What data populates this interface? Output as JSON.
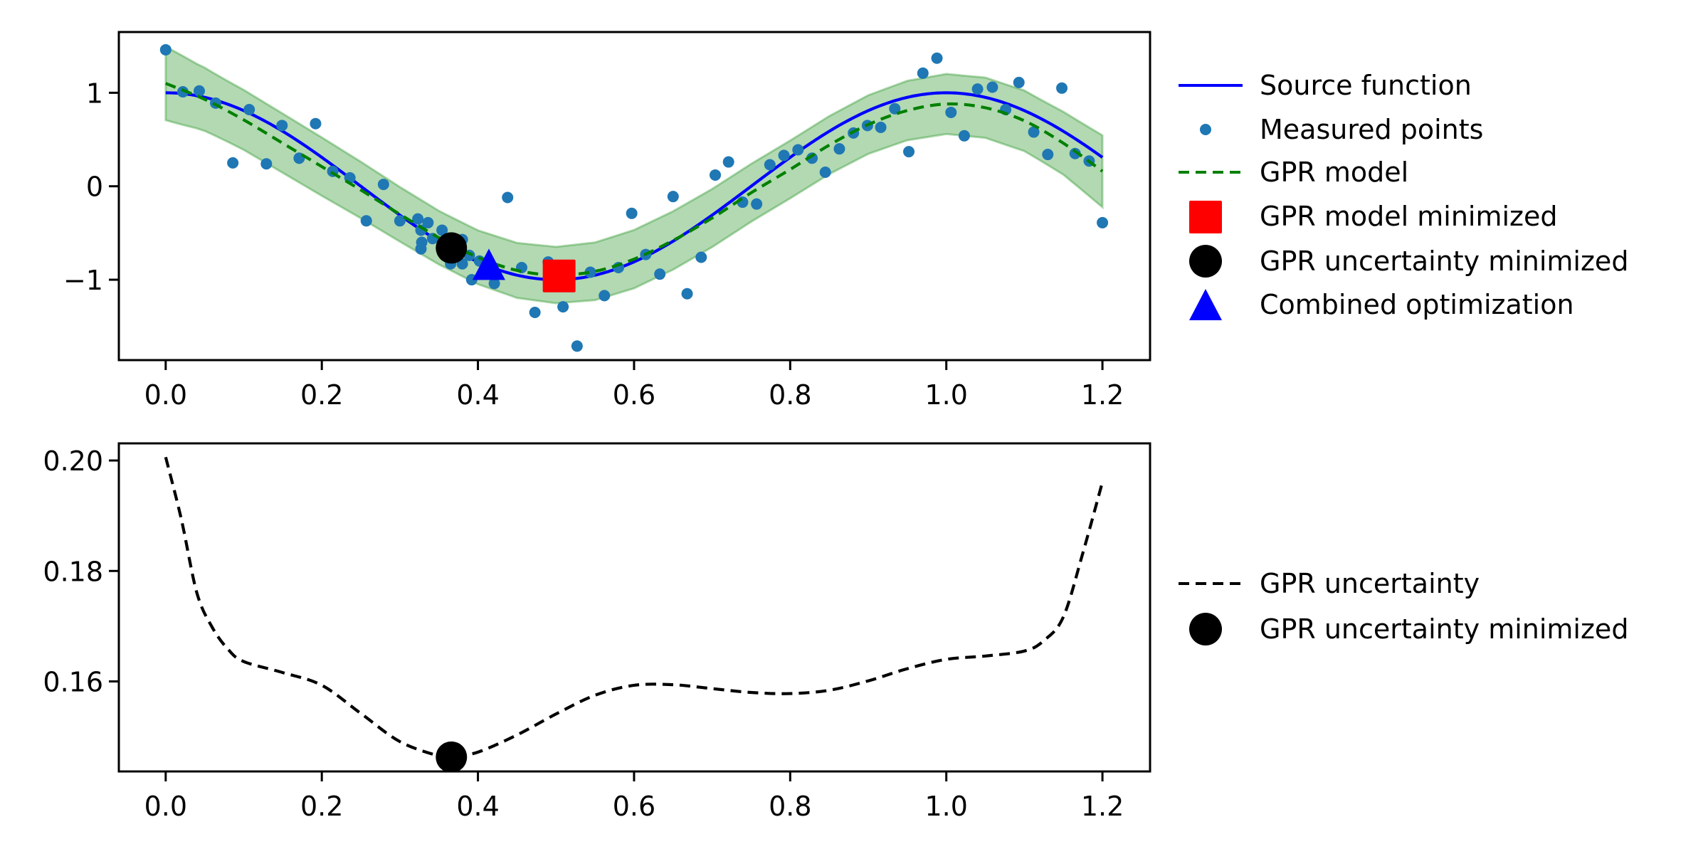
{
  "chart_data": [
    {
      "type": "line",
      "title": "",
      "xlabel": "",
      "ylabel": "",
      "xlim": [
        -0.06,
        1.261
      ],
      "ylim": [
        -1.86,
        1.65
      ],
      "grid": false,
      "x_ticks": [
        0.0,
        0.2,
        0.4,
        0.6,
        0.8,
        1.0,
        1.2
      ],
      "x_tick_labels": [
        "0.0",
        "0.2",
        "0.4",
        "0.6",
        "0.8",
        "1.0",
        "1.2"
      ],
      "y_ticks": [
        1,
        0,
        -1
      ],
      "y_tick_labels": [
        "1",
        "0",
        "−1"
      ],
      "legend_position": "outside-right",
      "legend": [
        {
          "label": "Source function",
          "marker": "line-solid",
          "color": "#0000ff"
        },
        {
          "label": "Measured points",
          "marker": "dot",
          "color": "#1f77b4"
        },
        {
          "label": "GPR model",
          "marker": "line-dashed",
          "color": "#008000"
        },
        {
          "label": "GPR model minimized",
          "marker": "square",
          "color": "#ff0000"
        },
        {
          "label": "GPR uncertainty minimized",
          "marker": "circle",
          "color": "#000000"
        },
        {
          "label": "Combined optimization",
          "marker": "triangle",
          "color": "#0000ff"
        }
      ],
      "series": [
        {
          "name": "Source function",
          "kind": "line",
          "color": "#0000ff",
          "x": [
            0,
            0.05,
            0.1,
            0.15,
            0.2,
            0.25,
            0.3,
            0.35,
            0.4,
            0.45,
            0.5,
            0.55,
            0.6,
            0.65,
            0.7,
            0.75,
            0.8,
            0.85,
            0.9,
            0.95,
            1.0,
            1.05,
            1.1,
            1.15,
            1.2
          ],
          "y": [
            1.0,
            0.951,
            0.809,
            0.588,
            0.309,
            0.0,
            -0.309,
            -0.588,
            -0.809,
            -0.951,
            -1.0,
            -0.951,
            -0.809,
            -0.588,
            -0.309,
            0.0,
            0.309,
            0.588,
            0.809,
            0.951,
            1.0,
            0.951,
            0.809,
            0.588,
            0.309
          ]
        },
        {
          "name": "Measured points",
          "kind": "scatter",
          "color": "#1f77b4",
          "points": [
            [
              0.0,
              1.46
            ],
            [
              0.022,
              1.01
            ],
            [
              0.043,
              1.02
            ],
            [
              0.064,
              0.89
            ],
            [
              0.086,
              0.25
            ],
            [
              0.107,
              0.82
            ],
            [
              0.129,
              0.24
            ],
            [
              0.149,
              0.65
            ],
            [
              0.171,
              0.3
            ],
            [
              0.192,
              0.67
            ],
            [
              0.214,
              0.16
            ],
            [
              0.236,
              0.09
            ],
            [
              0.257,
              -0.37
            ],
            [
              0.279,
              0.02
            ],
            [
              0.3,
              -0.37
            ],
            [
              0.323,
              -0.35
            ],
            [
              0.336,
              -0.39
            ],
            [
              0.327,
              -0.47
            ],
            [
              0.354,
              -0.47
            ],
            [
              0.328,
              -0.6
            ],
            [
              0.327,
              -0.67
            ],
            [
              0.342,
              -0.56
            ],
            [
              0.36,
              -0.58
            ],
            [
              0.38,
              -0.57
            ],
            [
              0.389,
              -0.74
            ],
            [
              0.365,
              -0.83
            ],
            [
              0.38,
              -0.83
            ],
            [
              0.392,
              -1.0
            ],
            [
              0.402,
              -0.8
            ],
            [
              0.421,
              -1.04
            ],
            [
              0.438,
              -0.12
            ],
            [
              0.456,
              -0.87
            ],
            [
              0.473,
              -1.35
            ],
            [
              0.49,
              -0.81
            ],
            [
              0.509,
              -1.29
            ],
            [
              0.527,
              -1.71
            ],
            [
              0.544,
              -0.92
            ],
            [
              0.562,
              -1.17
            ],
            [
              0.58,
              -0.87
            ],
            [
              0.597,
              -0.29
            ],
            [
              0.615,
              -0.73
            ],
            [
              0.633,
              -0.94
            ],
            [
              0.65,
              -0.11
            ],
            [
              0.668,
              -1.15
            ],
            [
              0.686,
              -0.76
            ],
            [
              0.704,
              0.12
            ],
            [
              0.721,
              0.26
            ],
            [
              0.739,
              -0.17
            ],
            [
              0.757,
              -0.19
            ],
            [
              0.774,
              0.23
            ],
            [
              0.792,
              0.33
            ],
            [
              0.81,
              0.39
            ],
            [
              0.828,
              0.3
            ],
            [
              0.845,
              0.15
            ],
            [
              0.863,
              0.4
            ],
            [
              0.881,
              0.57
            ],
            [
              0.899,
              0.65
            ],
            [
              0.916,
              0.63
            ],
            [
              0.934,
              0.83
            ],
            [
              0.952,
              0.37
            ],
            [
              0.97,
              1.21
            ],
            [
              0.988,
              1.37
            ],
            [
              1.006,
              0.79
            ],
            [
              1.023,
              0.54
            ],
            [
              1.04,
              1.04
            ],
            [
              1.059,
              1.06
            ],
            [
              1.076,
              0.82
            ],
            [
              1.093,
              1.11
            ],
            [
              1.112,
              0.58
            ],
            [
              1.13,
              0.34
            ],
            [
              1.148,
              1.05
            ],
            [
              1.165,
              0.35
            ],
            [
              1.183,
              0.27
            ],
            [
              1.2,
              -0.39
            ]
          ]
        },
        {
          "name": "GPR model",
          "kind": "line-dashed",
          "color": "#008000",
          "x": [
            0,
            0.05,
            0.1,
            0.15,
            0.2,
            0.25,
            0.3,
            0.35,
            0.4,
            0.45,
            0.5,
            0.55,
            0.6,
            0.65,
            0.7,
            0.75,
            0.8,
            0.85,
            0.9,
            0.95,
            1.0,
            1.05,
            1.1,
            1.15,
            1.2
          ],
          "y": [
            1.1,
            0.93,
            0.71,
            0.46,
            0.21,
            -0.04,
            -0.3,
            -0.55,
            -0.76,
            -0.9,
            -0.95,
            -0.91,
            -0.78,
            -0.58,
            -0.34,
            -0.07,
            0.18,
            0.44,
            0.66,
            0.81,
            0.88,
            0.84,
            0.7,
            0.46,
            0.16
          ]
        },
        {
          "name": "GPR confidence band",
          "kind": "fill-between",
          "color": "#008000",
          "opacity": 0.3,
          "band": "GPR model ± 1.96 × GPR uncertainty"
        },
        {
          "name": "GPR model minimized",
          "kind": "marker",
          "marker": "square",
          "color": "#ff0000",
          "points": [
            [
              0.504,
              -0.96
            ]
          ]
        },
        {
          "name": "GPR uncertainty minimized",
          "kind": "marker",
          "marker": "circle",
          "color": "#000000",
          "points": [
            [
              0.366,
              -0.66
            ]
          ]
        },
        {
          "name": "Combined optimization",
          "kind": "marker",
          "marker": "triangle",
          "color": "#0000ff",
          "points": [
            [
              0.414,
              -0.85
            ]
          ]
        }
      ]
    },
    {
      "type": "line",
      "title": "",
      "xlabel": "",
      "ylabel": "",
      "xlim": [
        -0.06,
        1.261
      ],
      "ylim": [
        0.1437,
        0.2031
      ],
      "grid": false,
      "x_ticks": [
        0.0,
        0.2,
        0.4,
        0.6,
        0.8,
        1.0,
        1.2
      ],
      "x_tick_labels": [
        "0.0",
        "0.2",
        "0.4",
        "0.6",
        "0.8",
        "1.0",
        "1.2"
      ],
      "y_ticks": [
        0.2,
        0.18,
        0.16
      ],
      "y_tick_labels": [
        "0.20",
        "0.18",
        "0.16"
      ],
      "legend_position": "outside-right",
      "legend": [
        {
          "label": "GPR uncertainty",
          "marker": "line-dashed",
          "color": "#000000"
        },
        {
          "label": "GPR uncertainty minimized",
          "marker": "circle",
          "color": "#000000"
        }
      ],
      "series": [
        {
          "name": "GPR uncertainty",
          "kind": "line-dashed",
          "color": "#000000",
          "x": [
            0,
            0.02,
            0.04,
            0.06,
            0.08,
            0.1,
            0.15,
            0.2,
            0.25,
            0.3,
            0.35,
            0.366,
            0.4,
            0.45,
            0.5,
            0.55,
            0.6,
            0.65,
            0.7,
            0.75,
            0.8,
            0.85,
            0.9,
            0.95,
            1.0,
            1.05,
            1.1,
            1.125,
            1.15,
            1.175,
            1.2
          ],
          "y": [
            0.2006,
            0.1894,
            0.176,
            0.1697,
            0.1658,
            0.1636,
            0.1616,
            0.1593,
            0.1542,
            0.1491,
            0.1465,
            0.1463,
            0.1472,
            0.1503,
            0.1541,
            0.1575,
            0.1593,
            0.1594,
            0.1587,
            0.158,
            0.1578,
            0.1584,
            0.1601,
            0.1623,
            0.164,
            0.1646,
            0.1655,
            0.1674,
            0.1717,
            0.1833,
            0.1961
          ]
        },
        {
          "name": "GPR uncertainty minimized",
          "kind": "marker",
          "marker": "circle",
          "color": "#000000",
          "points": [
            [
              0.366,
              0.1463
            ]
          ]
        }
      ]
    }
  ]
}
